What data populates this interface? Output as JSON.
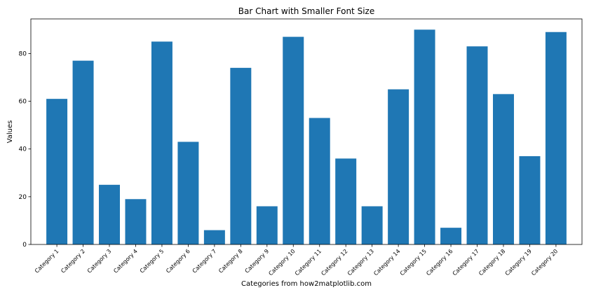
{
  "chart_data": {
    "type": "bar",
    "title": "Bar Chart with Smaller Font Size",
    "xlabel": "Categories from how2matplotlib.com",
    "ylabel": "Values",
    "categories": [
      "Category 1",
      "Category 2",
      "Category 3",
      "Category 4",
      "Category 5",
      "Category 6",
      "Category 7",
      "Category 8",
      "Category 9",
      "Category 10",
      "Category 11",
      "Category 12",
      "Category 13",
      "Category 14",
      "Category 15",
      "Category 16",
      "Category 17",
      "Category 18",
      "Category 19",
      "Category 20"
    ],
    "values": [
      61,
      77,
      25,
      19,
      85,
      43,
      6,
      74,
      16,
      87,
      53,
      36,
      16,
      65,
      90,
      7,
      83,
      63,
      37,
      89
    ],
    "ylim": [
      0,
      94.5
    ],
    "yticks": [
      0,
      20,
      40,
      60,
      80
    ],
    "bar_color": "#1f77b4",
    "grid": false,
    "legend": false
  }
}
